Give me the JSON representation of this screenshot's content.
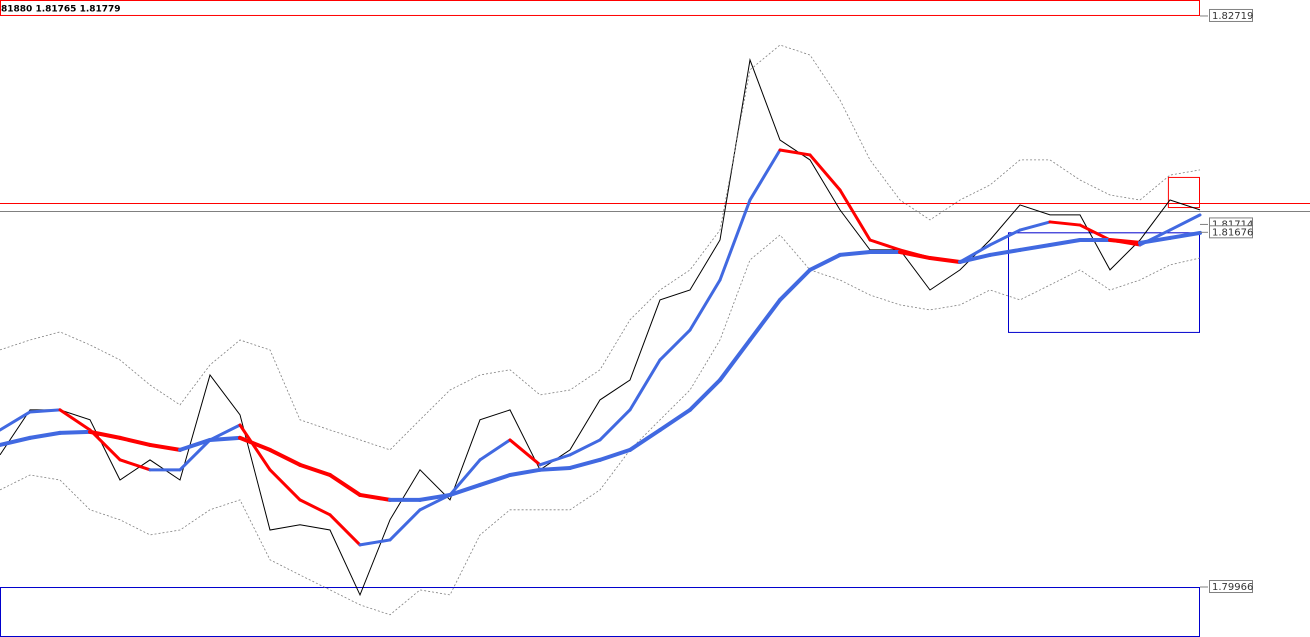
{
  "chart_data": {
    "type": "line",
    "header": "81880 1.81765 1.81779",
    "x": [
      0,
      1,
      2,
      3,
      4,
      5,
      6,
      7,
      8,
      9,
      10,
      11,
      12,
      13,
      14,
      15,
      16,
      17,
      18,
      19,
      20,
      21,
      22,
      23,
      24,
      25,
      26,
      27,
      28,
      29,
      30,
      31,
      32,
      33,
      34,
      35,
      36,
      37,
      38,
      39,
      40
    ],
    "xlim": [
      0,
      40
    ],
    "ylim": [
      1.79725,
      1.82796
    ],
    "yticks": [
      1.82719,
      1.81714,
      1.81676,
      1.79966
    ],
    "series": [
      {
        "color": "#000000",
        "values": [
          1.80603,
          1.8082,
          1.8082,
          1.80772,
          1.80482,
          1.80579,
          1.80482,
          1.80988,
          1.80796,
          1.80241,
          1.80266,
          1.80241,
          1.79928,
          1.8029,
          1.80531,
          1.80386,
          1.80772,
          1.8082,
          1.80531,
          1.80627,
          1.80868,
          1.80964,
          1.8135,
          1.81398,
          1.81639,
          1.82507,
          1.82121,
          1.82025,
          1.81784,
          1.81591,
          1.81591,
          1.81398,
          1.81495,
          1.81639,
          1.81808,
          1.8176,
          1.8176,
          1.81495,
          1.81639,
          1.81832,
          1.81784
        ]
      },
      {
        "color": "#808080",
        "dashed": true,
        "values": [
          1.81109,
          1.81157,
          1.81196,
          1.81133,
          1.81061,
          1.8094,
          1.80844,
          1.81037,
          1.81157,
          1.81109,
          1.80772,
          1.80723,
          1.80675,
          1.80627,
          1.80772,
          1.80916,
          1.80988,
          1.81013,
          1.80892,
          1.80916,
          1.81013,
          1.81254,
          1.81398,
          1.81495,
          1.81687,
          1.82459,
          1.82579,
          1.82531,
          1.82314,
          1.82025,
          1.81832,
          1.81736,
          1.81832,
          1.81904,
          1.82025,
          1.82025,
          1.81928,
          1.81856,
          1.81832,
          1.81952,
          1.81977
        ]
      },
      {
        "color": "#808080",
        "dashed": true,
        "values": [
          1.80434,
          1.80506,
          1.80482,
          1.80338,
          1.8029,
          1.80217,
          1.80241,
          1.80338,
          1.80386,
          1.80097,
          1.80024,
          1.79952,
          1.7988,
          1.79832,
          1.79952,
          1.79928,
          1.80217,
          1.80338,
          1.80338,
          1.80338,
          1.80434,
          1.80627,
          1.80772,
          1.80916,
          1.81157,
          1.81543,
          1.81663,
          1.81495,
          1.81446,
          1.81374,
          1.81326,
          1.81302,
          1.81326,
          1.81398,
          1.8135,
          1.81422,
          1.81495,
          1.81398,
          1.81446,
          1.81519,
          1.81552
        ]
      },
      {
        "color": "#4169e1",
        "down_color": "#ff0000",
        "values": [
          1.80723,
          1.8081,
          1.8082,
          1.80723,
          1.80579,
          1.80531,
          1.80531,
          1.80675,
          1.80747,
          1.80531,
          1.80386,
          1.80314,
          1.80169,
          1.80193,
          1.80338,
          1.8041,
          1.80579,
          1.80675,
          1.80555,
          1.80603,
          1.80675,
          1.8082,
          1.81061,
          1.81205,
          1.81446,
          1.81832,
          1.82073,
          1.82049,
          1.8188,
          1.81639,
          1.81591,
          1.81552,
          1.81533,
          1.81615,
          1.81687,
          1.81726,
          1.81711,
          1.81639,
          1.81615,
          1.81687,
          1.8176
        ]
      },
      {
        "color": "#4169e1",
        "down_color": "#ff0000",
        "values": [
          1.80651,
          1.80685,
          1.80709,
          1.80714,
          1.80685,
          1.80651,
          1.80627,
          1.80675,
          1.80685,
          1.80627,
          1.80555,
          1.80506,
          1.8041,
          1.80386,
          1.80386,
          1.8041,
          1.80458,
          1.80506,
          1.80531,
          1.8054,
          1.80579,
          1.80627,
          1.80723,
          1.8082,
          1.80964,
          1.81157,
          1.8135,
          1.81495,
          1.81567,
          1.81581,
          1.81581,
          1.81552,
          1.81533,
          1.81567,
          1.81591,
          1.81615,
          1.81639,
          1.81639,
          1.81625,
          1.81649,
          1.81673
        ]
      }
    ],
    "hlines": [
      {
        "value": 1.81817,
        "color": "#ff0000"
      },
      {
        "value": 1.81779,
        "color": "#808080"
      }
    ],
    "boxes": [
      {
        "color": "#ff0000",
        "x": [
          0,
          40
        ],
        "y": [
          1.82719,
          1.82796
        ]
      },
      {
        "color": "#0000cd",
        "x": [
          0,
          40
        ],
        "y": [
          1.79725,
          1.79966
        ]
      },
      {
        "color": "#0000cd",
        "x": [
          33.6,
          40
        ],
        "y": [
          1.81191,
          1.81676
        ]
      },
      {
        "color": "#ff0000",
        "x": [
          38.93,
          40
        ],
        "y": [
          1.81793,
          1.81943
        ]
      }
    ]
  }
}
